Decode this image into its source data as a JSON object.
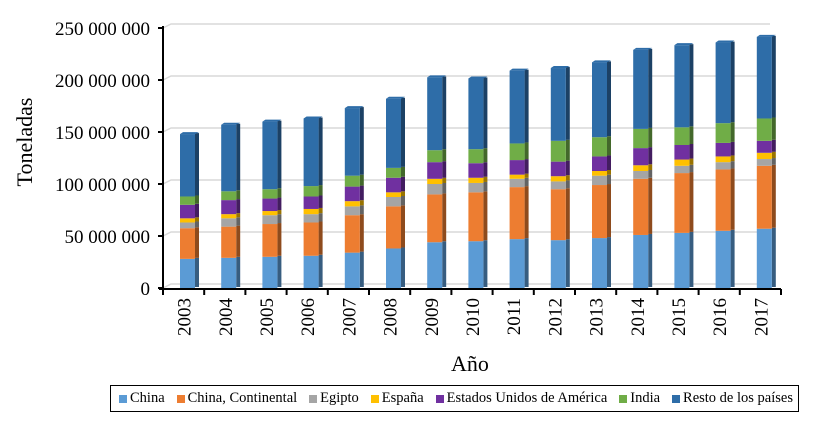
{
  "chart_data": {
    "type": "bar",
    "stacked": true,
    "title": "",
    "xlabel": "Año",
    "ylabel": "Toneladas",
    "ylim": [
      0,
      250000000
    ],
    "yticks": [
      0,
      50000000,
      100000000,
      150000000,
      200000000,
      250000000
    ],
    "ytick_labels": [
      "0",
      "50 000 000",
      "100 000 000",
      "150 000 000",
      "200 000 000",
      "250 000 000"
    ],
    "grid": true,
    "legend_position": "bottom",
    "categories": [
      "2003",
      "2004",
      "2005",
      "2006",
      "2007",
      "2008",
      "2009",
      "2010",
      "2011",
      "2012",
      "2013",
      "2014",
      "2015",
      "2016",
      "2017"
    ],
    "series": [
      {
        "name": "China",
        "color": "#5B9BD5",
        "values": [
          28000000,
          29000000,
          30000000,
          31000000,
          34000000,
          38000000,
          44000000,
          45000000,
          47000000,
          46000000,
          48000000,
          51000000,
          53000000,
          55000000,
          57000000
        ]
      },
      {
        "name": "China, Continental",
        "color": "#ED7D31",
        "values": [
          29500000,
          30000000,
          31500000,
          32000000,
          36000000,
          40500000,
          46000000,
          47000000,
          50000000,
          49000000,
          51000000,
          54000000,
          57500000,
          59000000,
          60500000
        ]
      },
      {
        "name": "Egipto",
        "color": "#A5A5A5",
        "values": [
          5500000,
          8000000,
          8500000,
          8000000,
          8500000,
          9000000,
          10000000,
          9000000,
          8000000,
          7500000,
          9000000,
          7500000,
          7000000,
          7000000,
          6500000
        ]
      },
      {
        "name": "España",
        "color": "#FFC000",
        "values": [
          4000000,
          4000000,
          4000000,
          5000000,
          5000000,
          4500000,
          5000000,
          5000000,
          4000000,
          5000000,
          4500000,
          5500000,
          6000000,
          5500000,
          6000000
        ]
      },
      {
        "name": "Estados Unidos de América",
        "color": "#7030A0",
        "values": [
          13000000,
          13500000,
          12000000,
          12000000,
          14000000,
          14000000,
          16000000,
          14000000,
          14000000,
          14000000,
          14000000,
          16500000,
          14000000,
          13000000,
          11500000
        ]
      },
      {
        "name": "India",
        "color": "#70AD47",
        "values": [
          8000000,
          8500000,
          9000000,
          10000000,
          10500000,
          9500000,
          11500000,
          13500000,
          16000000,
          20000000,
          18500000,
          18500000,
          17000000,
          19000000,
          21500000
        ]
      },
      {
        "name": "Resto de los países",
        "color": "#2E6DA8",
        "values": [
          60000000,
          64000000,
          65000000,
          65000000,
          65000000,
          66500000,
          70000000,
          68000000,
          70000000,
          70000000,
          72000000,
          76000000,
          79000000,
          77500000,
          78500000
        ]
      }
    ]
  }
}
